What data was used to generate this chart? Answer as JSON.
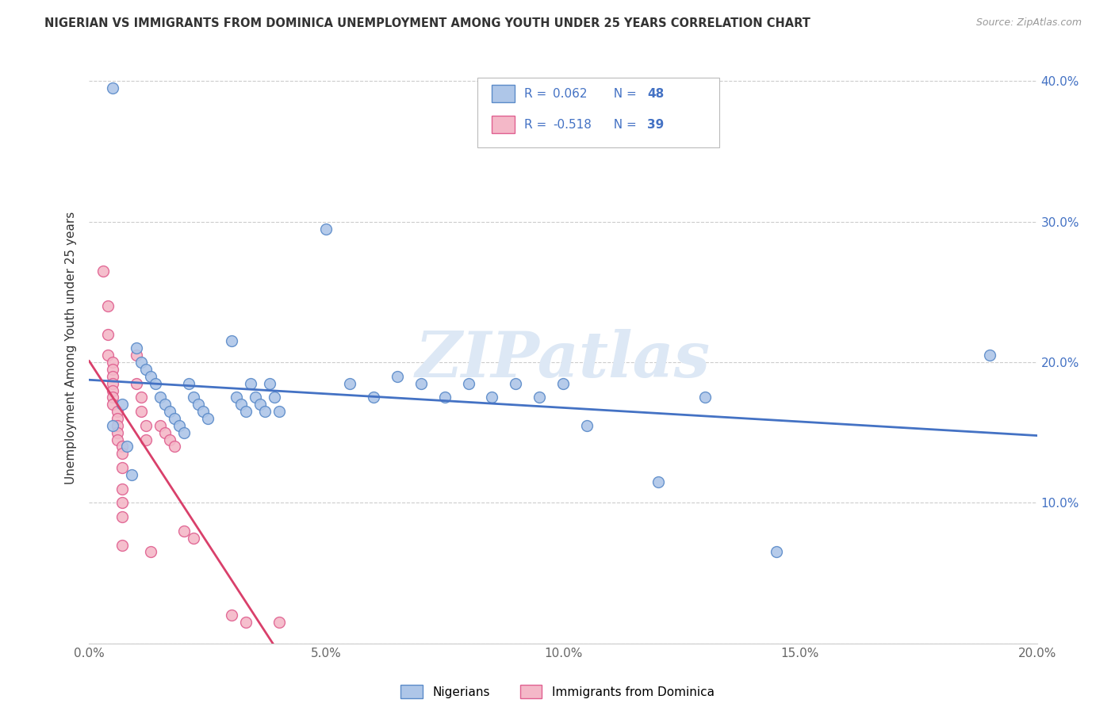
{
  "title": "NIGERIAN VS IMMIGRANTS FROM DOMINICA UNEMPLOYMENT AMONG YOUTH UNDER 25 YEARS CORRELATION CHART",
  "source": "Source: ZipAtlas.com",
  "ylabel": "Unemployment Among Youth under 25 years",
  "xlim": [
    0.0,
    0.2
  ],
  "ylim": [
    0.0,
    0.42
  ],
  "xticks": [
    0.0,
    0.05,
    0.1,
    0.15,
    0.2
  ],
  "xtick_labels": [
    "0.0%",
    "",
    "",
    "",
    ""
  ],
  "yticks": [
    0.0,
    0.1,
    0.2,
    0.3,
    0.4
  ],
  "ytick_labels_right": [
    "",
    "10.0%",
    "20.0%",
    "30.0%",
    "40.0%"
  ],
  "R_nigerian": 0.062,
  "N_nigerian": 48,
  "R_dominica": -0.518,
  "N_dominica": 39,
  "nigerian_color": "#aec6e8",
  "dominica_color": "#f4b8c8",
  "nigerian_edge_color": "#5b8bc9",
  "dominica_edge_color": "#e06090",
  "nigerian_line_color": "#4472c4",
  "dominica_line_color": "#d9406b",
  "accent_color": "#4472c4",
  "text_color": "#333333",
  "grid_color": "#cccccc",
  "watermark_text": "ZIPatlas",
  "watermark_color": "#dde8f5",
  "bottom_legend_labels": [
    "Nigerians",
    "Immigrants from Dominica"
  ],
  "nigerian_scatter": [
    [
      0.005,
      0.395
    ],
    [
      0.005,
      0.155
    ],
    [
      0.007,
      0.17
    ],
    [
      0.008,
      0.14
    ],
    [
      0.009,
      0.12
    ],
    [
      0.01,
      0.21
    ],
    [
      0.011,
      0.2
    ],
    [
      0.012,
      0.195
    ],
    [
      0.013,
      0.19
    ],
    [
      0.014,
      0.185
    ],
    [
      0.015,
      0.175
    ],
    [
      0.016,
      0.17
    ],
    [
      0.017,
      0.165
    ],
    [
      0.018,
      0.16
    ],
    [
      0.019,
      0.155
    ],
    [
      0.02,
      0.15
    ],
    [
      0.021,
      0.185
    ],
    [
      0.022,
      0.175
    ],
    [
      0.023,
      0.17
    ],
    [
      0.024,
      0.165
    ],
    [
      0.025,
      0.16
    ],
    [
      0.03,
      0.215
    ],
    [
      0.031,
      0.175
    ],
    [
      0.032,
      0.17
    ],
    [
      0.033,
      0.165
    ],
    [
      0.034,
      0.185
    ],
    [
      0.035,
      0.175
    ],
    [
      0.036,
      0.17
    ],
    [
      0.037,
      0.165
    ],
    [
      0.038,
      0.185
    ],
    [
      0.039,
      0.175
    ],
    [
      0.04,
      0.165
    ],
    [
      0.05,
      0.295
    ],
    [
      0.055,
      0.185
    ],
    [
      0.06,
      0.175
    ],
    [
      0.065,
      0.19
    ],
    [
      0.07,
      0.185
    ],
    [
      0.075,
      0.175
    ],
    [
      0.08,
      0.185
    ],
    [
      0.085,
      0.175
    ],
    [
      0.09,
      0.185
    ],
    [
      0.095,
      0.175
    ],
    [
      0.1,
      0.185
    ],
    [
      0.105,
      0.155
    ],
    [
      0.12,
      0.115
    ],
    [
      0.13,
      0.175
    ],
    [
      0.145,
      0.065
    ],
    [
      0.19,
      0.205
    ]
  ],
  "dominica_scatter": [
    [
      0.003,
      0.265
    ],
    [
      0.004,
      0.24
    ],
    [
      0.004,
      0.22
    ],
    [
      0.004,
      0.205
    ],
    [
      0.005,
      0.2
    ],
    [
      0.005,
      0.195
    ],
    [
      0.005,
      0.19
    ],
    [
      0.005,
      0.185
    ],
    [
      0.005,
      0.18
    ],
    [
      0.005,
      0.175
    ],
    [
      0.005,
      0.17
    ],
    [
      0.006,
      0.165
    ],
    [
      0.006,
      0.16
    ],
    [
      0.006,
      0.155
    ],
    [
      0.006,
      0.15
    ],
    [
      0.006,
      0.145
    ],
    [
      0.007,
      0.14
    ],
    [
      0.007,
      0.135
    ],
    [
      0.007,
      0.125
    ],
    [
      0.007,
      0.11
    ],
    [
      0.007,
      0.1
    ],
    [
      0.007,
      0.09
    ],
    [
      0.007,
      0.07
    ],
    [
      0.01,
      0.205
    ],
    [
      0.01,
      0.185
    ],
    [
      0.011,
      0.175
    ],
    [
      0.011,
      0.165
    ],
    [
      0.012,
      0.155
    ],
    [
      0.012,
      0.145
    ],
    [
      0.013,
      0.065
    ],
    [
      0.015,
      0.155
    ],
    [
      0.016,
      0.15
    ],
    [
      0.017,
      0.145
    ],
    [
      0.018,
      0.14
    ],
    [
      0.02,
      0.08
    ],
    [
      0.022,
      0.075
    ],
    [
      0.03,
      0.02
    ],
    [
      0.033,
      0.015
    ],
    [
      0.04,
      0.015
    ]
  ]
}
